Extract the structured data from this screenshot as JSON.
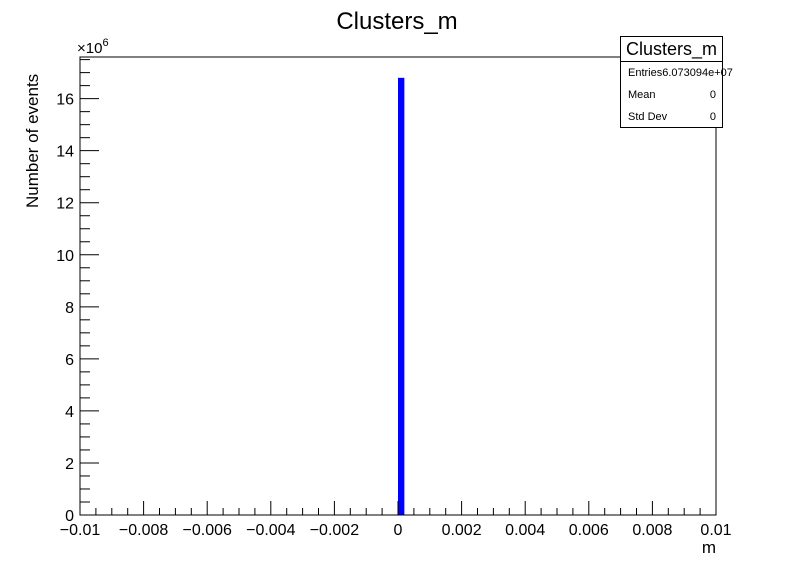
{
  "chart_data": {
    "type": "bar",
    "title": "Clusters_m",
    "xlabel": "m",
    "ylabel": "Number of events",
    "y_multiplier_label": "×10",
    "y_multiplier_exponent": "6",
    "xlim": [
      -0.01,
      0.01
    ],
    "ylim": [
      0,
      17.6
    ],
    "x_ticks": [
      {
        "value": -0.01,
        "label": "−0.01"
      },
      {
        "value": -0.008,
        "label": "−0.008"
      },
      {
        "value": -0.006,
        "label": "−0.006"
      },
      {
        "value": -0.004,
        "label": "−0.004"
      },
      {
        "value": -0.002,
        "label": "−0.002"
      },
      {
        "value": 0,
        "label": "0"
      },
      {
        "value": 0.002,
        "label": "0.002"
      },
      {
        "value": 0.004,
        "label": "0.004"
      },
      {
        "value": 0.006,
        "label": "0.006"
      },
      {
        "value": 0.008,
        "label": "0.008"
      },
      {
        "value": 0.01,
        "label": "0.01"
      }
    ],
    "y_ticks": [
      {
        "value": 0,
        "label": "0"
      },
      {
        "value": 2,
        "label": "2"
      },
      {
        "value": 4,
        "label": "4"
      },
      {
        "value": 6,
        "label": "6"
      },
      {
        "value": 8,
        "label": "8"
      },
      {
        "value": 10,
        "label": "10"
      },
      {
        "value": 12,
        "label": "12"
      },
      {
        "value": 14,
        "label": "14"
      },
      {
        "value": 16,
        "label": "16"
      }
    ],
    "bins": [
      {
        "x_low": 0.0,
        "x_high": 0.0002,
        "value": 16.8
      }
    ],
    "bar_color": "#0000ff",
    "grid": false,
    "legend": "none"
  },
  "stats_box": {
    "title": "Clusters_m",
    "rows": [
      {
        "label": "Entries",
        "value": "6.073094e+07"
      },
      {
        "label": "Mean",
        "value": "0"
      },
      {
        "label": "Std Dev",
        "value": "0"
      }
    ]
  }
}
